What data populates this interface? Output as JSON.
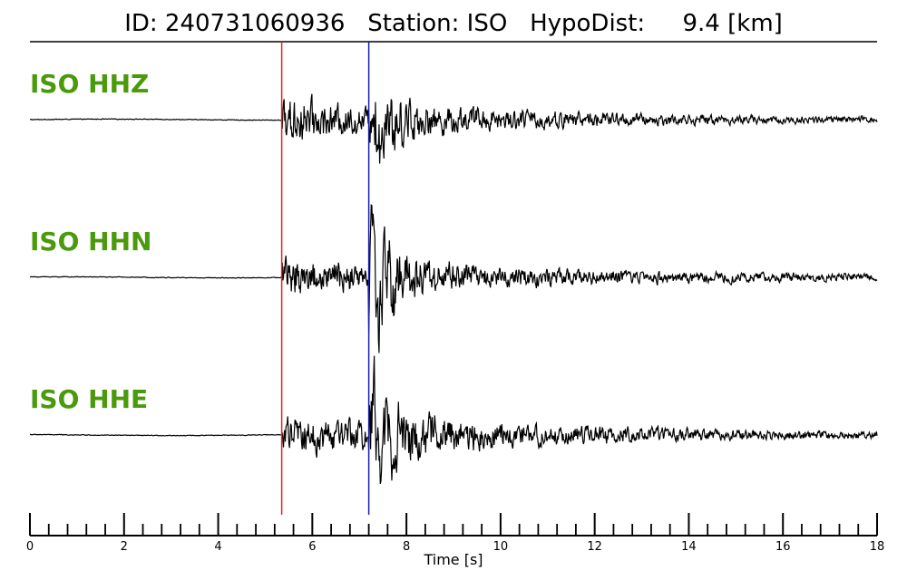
{
  "header": {
    "title": "ID: 240731060936   Station: ISO   HypoDist:     9.4 [km]"
  },
  "chart_data": {
    "type": "line",
    "title": "ID: 240731060936   Station: ISO   HypoDist:     9.4 [km]",
    "xlabel": "Time [s]",
    "xlim": [
      0,
      18
    ],
    "x_ticks": [
      0,
      2,
      4,
      6,
      8,
      10,
      12,
      14,
      16,
      18
    ],
    "grid": false,
    "label_color": "#4a9a0c",
    "trace_color": "#000000",
    "picks": [
      {
        "phase": "P",
        "time": 5.35,
        "color": "#e8221c"
      },
      {
        "phase": "S",
        "time": 7.2,
        "color": "#1c1cb0"
      }
    ],
    "series": [
      {
        "name": "ISO HHZ",
        "envelope": {
          "pre_noise": 0.015,
          "p_coda": [
            [
              5.35,
              0.22
            ],
            [
              5.6,
              0.35
            ],
            [
              6.4,
              0.22
            ],
            [
              7.15,
              0.18
            ]
          ],
          "s_coda": [
            [
              7.2,
              0.55
            ],
            [
              7.6,
              0.45
            ],
            [
              8.4,
              0.22
            ],
            [
              9.5,
              0.16
            ],
            [
              11.0,
              0.12
            ],
            [
              13.0,
              0.08
            ],
            [
              15.0,
              0.06
            ],
            [
              18.0,
              0.045
            ]
          ]
        }
      },
      {
        "name": "ISO HHN",
        "envelope": {
          "pre_noise": 0.015,
          "p_coda": [
            [
              5.35,
              0.22
            ],
            [
              5.6,
              0.28
            ],
            [
              6.4,
              0.22
            ],
            [
              7.15,
              0.18
            ]
          ],
          "s_coda": [
            [
              7.2,
              0.75
            ],
            [
              7.5,
              0.6
            ],
            [
              8.4,
              0.25
            ],
            [
              9.5,
              0.15
            ],
            [
              11.0,
              0.12
            ],
            [
              13.0,
              0.09
            ],
            [
              15.0,
              0.07
            ],
            [
              18.0,
              0.045
            ]
          ]
        }
      },
      {
        "name": "ISO HHE",
        "envelope": {
          "pre_noise": 0.015,
          "p_coda": [
            [
              5.35,
              0.2
            ],
            [
              5.6,
              0.26
            ],
            [
              6.4,
              0.22
            ],
            [
              7.15,
              0.2
            ]
          ],
          "s_coda": [
            [
              7.2,
              0.8
            ],
            [
              7.5,
              0.55
            ],
            [
              8.4,
              0.3
            ],
            [
              9.5,
              0.2
            ],
            [
              11.0,
              0.13
            ],
            [
              13.0,
              0.1
            ],
            [
              15.0,
              0.07
            ],
            [
              18.0,
              0.05
            ]
          ]
        }
      }
    ]
  }
}
